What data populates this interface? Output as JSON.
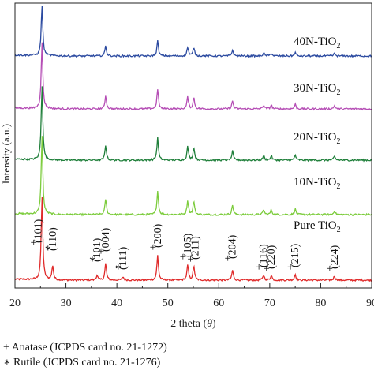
{
  "chart_data": {
    "type": "line",
    "xlabel": "2 theta (θ)",
    "ylabel": "Intensity (a.u.)",
    "xlim": [
      20,
      90
    ],
    "xticks": [
      20,
      30,
      40,
      50,
      60,
      70,
      80,
      90
    ],
    "y_ticks_shown": false,
    "grid": false,
    "series": [
      {
        "name": "Pure TiO2",
        "label": "Pure TiO",
        "label_sub": "2",
        "color": "#e02b2b",
        "rutile": true
      },
      {
        "name": "10N-TiO2",
        "label": "10N-TiO",
        "label_sub": "2",
        "color": "#7ccc3c",
        "rutile": false
      },
      {
        "name": "20N-TiO2",
        "label": "20N-TiO",
        "label_sub": "2",
        "color": "#1f7f3a",
        "rutile": false
      },
      {
        "name": "30N-TiO2",
        "label": "30N-TiO",
        "label_sub": "2",
        "color": "#b54db5",
        "rutile": false
      },
      {
        "name": "40N-TiO2",
        "label": "40N-TiO",
        "label_sub": "2",
        "color": "#2b4aa0",
        "rutile": false
      }
    ],
    "anatase_peaks": [
      {
        "x": 25.3,
        "h": 1.0,
        "label": "(101)"
      },
      {
        "x": 37.8,
        "h": 0.2,
        "label": "(004)"
      },
      {
        "x": 48.0,
        "h": 0.3,
        "label": "(200)"
      },
      {
        "x": 53.9,
        "h": 0.18,
        "label": "(105)"
      },
      {
        "x": 55.1,
        "h": 0.17,
        "label": "(211)"
      },
      {
        "x": 62.7,
        "h": 0.12,
        "label": "(204)"
      },
      {
        "x": 68.8,
        "h": 0.06,
        "label": "(116)"
      },
      {
        "x": 70.3,
        "h": 0.06,
        "label": "(220)"
      },
      {
        "x": 75.0,
        "h": 0.07,
        "label": "(215)"
      },
      {
        "x": 82.7,
        "h": 0.05,
        "label": "(224)"
      }
    ],
    "rutile_peaks": [
      {
        "x": 27.4,
        "h": 0.17,
        "label": "(110)"
      },
      {
        "x": 36.1,
        "h": 0.06,
        "label": "(101)"
      },
      {
        "x": 41.2,
        "h": 0.04,
        "label": "(111)"
      }
    ],
    "annotations": [
      {
        "x": 24.6,
        "marker": "+",
        "label": "(101)"
      },
      {
        "x": 27.4,
        "marker": "*",
        "label": "(110)"
      },
      {
        "x": 36.1,
        "marker": "*",
        "label": "(101)"
      },
      {
        "x": 37.8,
        "marker": "+",
        "label": "(004)"
      },
      {
        "x": 41.2,
        "marker": "*",
        "label": "(111)"
      },
      {
        "x": 48.0,
        "marker": "+",
        "label": "(200)"
      },
      {
        "x": 53.9,
        "marker": "+",
        "label": "(105)"
      },
      {
        "x": 55.4,
        "marker": "+",
        "label": "(211)"
      },
      {
        "x": 62.7,
        "marker": "+",
        "label": "(204)"
      },
      {
        "x": 68.8,
        "marker": "+",
        "label": "(116)"
      },
      {
        "x": 70.3,
        "marker": "+",
        "label": "(220)"
      },
      {
        "x": 75.0,
        "marker": "+",
        "label": "(215)"
      },
      {
        "x": 82.7,
        "marker": "+",
        "label": "(224)"
      }
    ]
  },
  "legend": {
    "anatase": "+ Anatase (JCPDS card no. 21-1272)",
    "rutile": "∗ Rutile (JCPDS card no. 21-1276)"
  }
}
